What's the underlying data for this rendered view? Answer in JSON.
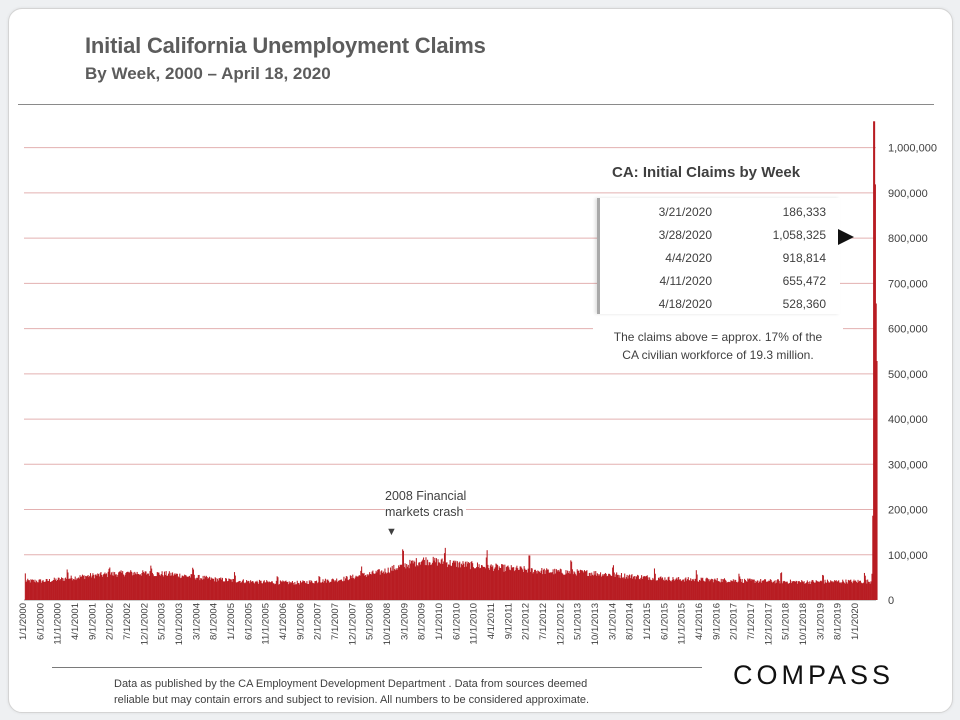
{
  "title": "Initial California Unemployment Claims",
  "subtitle": "By Week, 2000 – April 18, 2020",
  "colors": {
    "bar": "#b81c22",
    "grid": "#e3b0b0",
    "text": "#3f3f3f"
  },
  "inset": {
    "title": "CA: Initial Claims by Week",
    "rows": [
      {
        "date": "3/21/2020",
        "value": "186,333"
      },
      {
        "date": "3/28/2020",
        "value": "1,058,325"
      },
      {
        "date": "4/4/2020",
        "value": "918,814"
      },
      {
        "date": "4/11/2020",
        "value": "655,472"
      },
      {
        "date": "4/18/2020",
        "value": "528,360"
      }
    ],
    "pointer_icon": "right-triangle-arrow-icon",
    "note_line1": "The claims above = approx. 17% of the",
    "note_line2": "CA civilian workforce of 19.3  million."
  },
  "annotation": {
    "line1": "2008  Financial",
    "line2": "markets crash",
    "arrow": "▼"
  },
  "source": {
    "line1": "Data  as  published  by  the  CA  Employment  Development  Department  .  Data  from  sources  deemed",
    "line2": "reliable but may contain errors and subject to revision.  All numbers to be considered approximate."
  },
  "logo": "COMPASS",
  "chart_data": {
    "type": "bar",
    "title": "Initial California Unemployment Claims",
    "subtitle": "By Week, 2000 – April 18, 2020",
    "xlabel": "",
    "ylabel": "",
    "ylim": [
      0,
      1070000
    ],
    "y_ticks": [
      0,
      100000,
      200000,
      300000,
      400000,
      500000,
      600000,
      700000,
      800000,
      900000,
      1000000
    ],
    "y_tick_labels": [
      "0",
      "100,000",
      "200,000",
      "300,000",
      "400,000",
      "500,000",
      "600,000",
      "700,000",
      "800,000",
      "900,000",
      "1,000,000"
    ],
    "y_axis_side": "right",
    "grid": true,
    "x_tick_labels": [
      "1/1/2000",
      "6/1/2000",
      "11/1/2000",
      "4/1/2001",
      "9/1/2001",
      "2/1/2002",
      "7/1/2002",
      "12/1/2002",
      "5/1/2003",
      "10/1/2003",
      "3/1/2004",
      "8/1/2004",
      "1/1/2005",
      "6/1/2005",
      "11/1/2005",
      "4/1/2006",
      "9/1/2006",
      "2/1/2007",
      "7/1/2007",
      "12/1/2007",
      "5/1/2008",
      "10/1/2008",
      "3/1/2009",
      "8/1/2009",
      "1/1/2010",
      "6/1/2010",
      "11/1/2010",
      "4/1/2011",
      "9/1/2011",
      "2/1/2012",
      "7/1/2012",
      "12/1/2012",
      "5/1/2013",
      "10/1/2013",
      "3/1/2014",
      "8/1/2014",
      "1/1/2015",
      "6/1/2015",
      "11/1/2015",
      "4/1/2016",
      "9/1/2016",
      "2/1/2017",
      "7/1/2017",
      "12/1/2017",
      "5/1/2018",
      "10/1/2018",
      "3/1/2019",
      "8/1/2019",
      "1/1/2020"
    ],
    "x_range": [
      "2000-01-01",
      "2020-04-18"
    ],
    "series": [
      {
        "values_by_year_approx": [
          {
            "year": 2000,
            "value": 42000
          },
          {
            "year": 2001,
            "value": 53000
          },
          {
            "year": 2002,
            "value": 60000
          },
          {
            "year": 2003,
            "value": 57000
          },
          {
            "year": 2004,
            "value": 46000
          },
          {
            "year": 2005,
            "value": 40000
          },
          {
            "year": 2006,
            "value": 38000
          },
          {
            "year": 2007,
            "value": 45000
          },
          {
            "year": 2008,
            "value": 62000
          },
          {
            "year": 2009,
            "value": 88000
          },
          {
            "year": 2010,
            "value": 78000
          },
          {
            "year": 2011,
            "value": 70000
          },
          {
            "year": 2012,
            "value": 63000
          },
          {
            "year": 2013,
            "value": 60000
          },
          {
            "year": 2014,
            "value": 52000
          },
          {
            "year": 2015,
            "value": 46000
          },
          {
            "year": 2016,
            "value": 44000
          },
          {
            "year": 2017,
            "value": 42000
          },
          {
            "year": 2018,
            "value": 40000
          },
          {
            "year": 2019,
            "value": 41000
          }
        ],
        "final_weeks": [
          {
            "date": "2020-01-04",
            "value": 65000
          },
          {
            "date": "2020-03-14",
            "value": 58000
          },
          {
            "date": "2020-03-21",
            "value": 186333
          },
          {
            "date": "2020-03-28",
            "value": 1058325
          },
          {
            "date": "2020-04-04",
            "value": 918814
          },
          {
            "date": "2020-04-11",
            "value": 655472
          },
          {
            "date": "2020-04-18",
            "value": 528360
          }
        ]
      }
    ]
  }
}
